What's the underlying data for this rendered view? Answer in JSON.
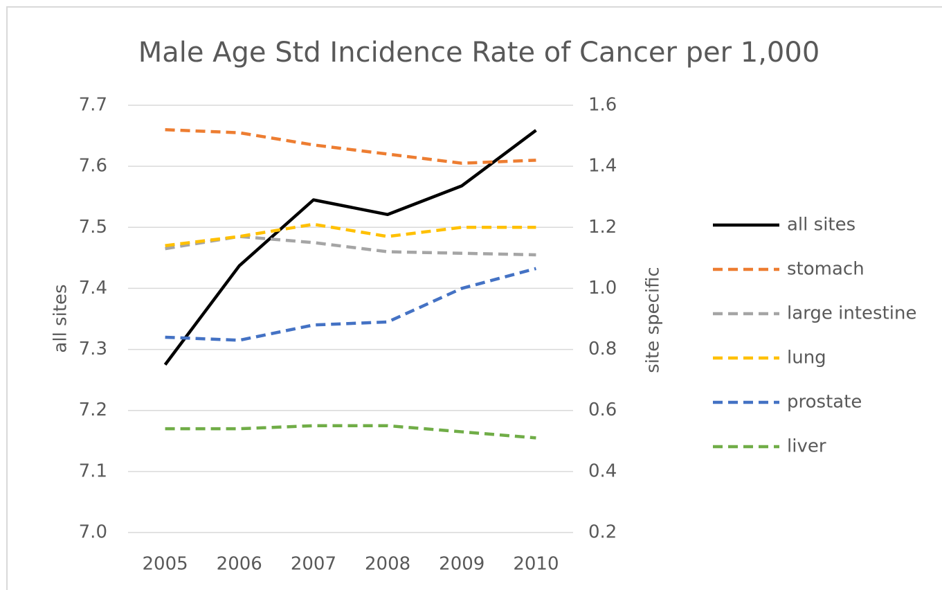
{
  "chart_data": {
    "type": "line",
    "title": "Male Age Std Incidence Rate of Cancer per 1,000",
    "y_label": "all sites",
    "y2_label": "site specific",
    "categories": [
      "2005",
      "2006",
      "2007",
      "2008",
      "2009",
      "2010"
    ],
    "ylim": [
      7.0,
      7.7
    ],
    "yticks": [
      {
        "value": 7,
        "label": "7.0"
      },
      7.1,
      7.2,
      7.3,
      7.4,
      7.5,
      7.6,
      7.7
    ],
    "y2lim": [
      0.2,
      1.6
    ],
    "y2ticks": [
      0.2,
      0.4,
      0.6,
      0.8,
      {
        "value": 1,
        "label": "1.0"
      },
      1.2,
      1.4,
      1.6
    ],
    "grid": true,
    "legend": "right",
    "series": [
      {
        "name": "all sites",
        "color": "#000000",
        "dashed": false,
        "values": [
          7.275,
          7.437,
          7.545,
          7.521,
          7.568,
          7.659
        ]
      },
      {
        "name": "stomach",
        "color": "#ed7d31",
        "dashed": true,
        "axis": "y2",
        "values": [
          1.52,
          1.51,
          1.47,
          1.44,
          1.41,
          1.42
        ]
      },
      {
        "name": "large intestine",
        "color": "#a5a5a5",
        "dashed": true,
        "axis": "y2",
        "values": [
          1.13,
          1.17,
          1.15,
          1.12,
          1.115,
          1.11
        ]
      },
      {
        "name": "lung",
        "color": "#ffc000",
        "dashed": true,
        "axis": "y2",
        "values": [
          1.14,
          1.17,
          1.21,
          1.17,
          1.2,
          1.2
        ]
      },
      {
        "name": "prostate",
        "color": "#4472c4",
        "dashed": true,
        "axis": "y2",
        "values": [
          0.84,
          0.83,
          0.88,
          0.89,
          1.0,
          1.065
        ]
      },
      {
        "name": "liver",
        "color": "#70ad47",
        "dashed": true,
        "axis": "y2",
        "values": [
          0.54,
          0.54,
          0.55,
          0.55,
          0.53,
          0.51
        ]
      }
    ]
  }
}
